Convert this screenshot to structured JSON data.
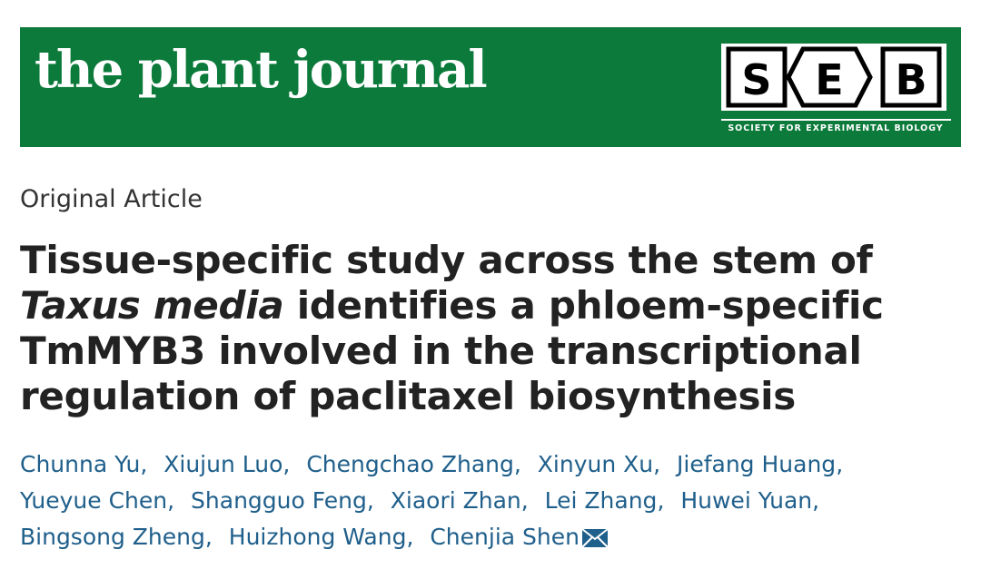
{
  "header": {
    "journal": "the plant journal",
    "logo_letters": [
      "S",
      "E",
      "B"
    ],
    "society": "SOCIETY FOR EXPERIMENTAL BIOLOGY"
  },
  "article_type": "Original Article",
  "title": [
    "Tissue-specific study across the stem of ",
    "Taxus media",
    " identifies a phloem-specific TmMYB3 involved in the transcriptional regulation of paclitaxel biosynthesis"
  ],
  "authors": [
    "Chunna Yu",
    "Xiujun Luo",
    "Chengchao Zhang",
    "Xinyun Xu",
    "Jiefang Huang",
    "Yueyue Chen",
    "Shangguo Feng",
    "Xiaori Zhan",
    "Lei Zhang",
    "Huwei Yuan",
    "Bingsong Zheng",
    "Huizhong Wang",
    "Chenjia Shen"
  ],
  "author_separator": ","
}
